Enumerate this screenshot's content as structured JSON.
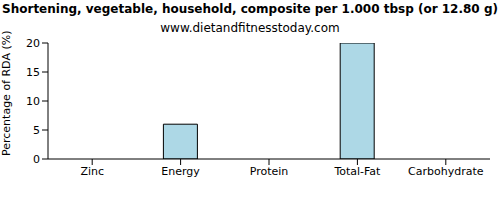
{
  "chart_data": {
    "type": "bar",
    "title": "Shortening, vegetable, household, composite per 1.000 tbsp (or 12.80 g)",
    "subtitle": "www.dietandfitnesstoday.com",
    "y_label": "Percentage of RDA (%)",
    "categories": [
      "Zinc",
      "Energy",
      "Protein",
      "Total-Fat",
      "Carbohydrate"
    ],
    "values": [
      0,
      6,
      0,
      20,
      0
    ],
    "color": "#add8e6",
    "ylim": [
      0,
      20
    ],
    "yticks": [
      0,
      5,
      10,
      15,
      20
    ],
    "grid": false
  }
}
